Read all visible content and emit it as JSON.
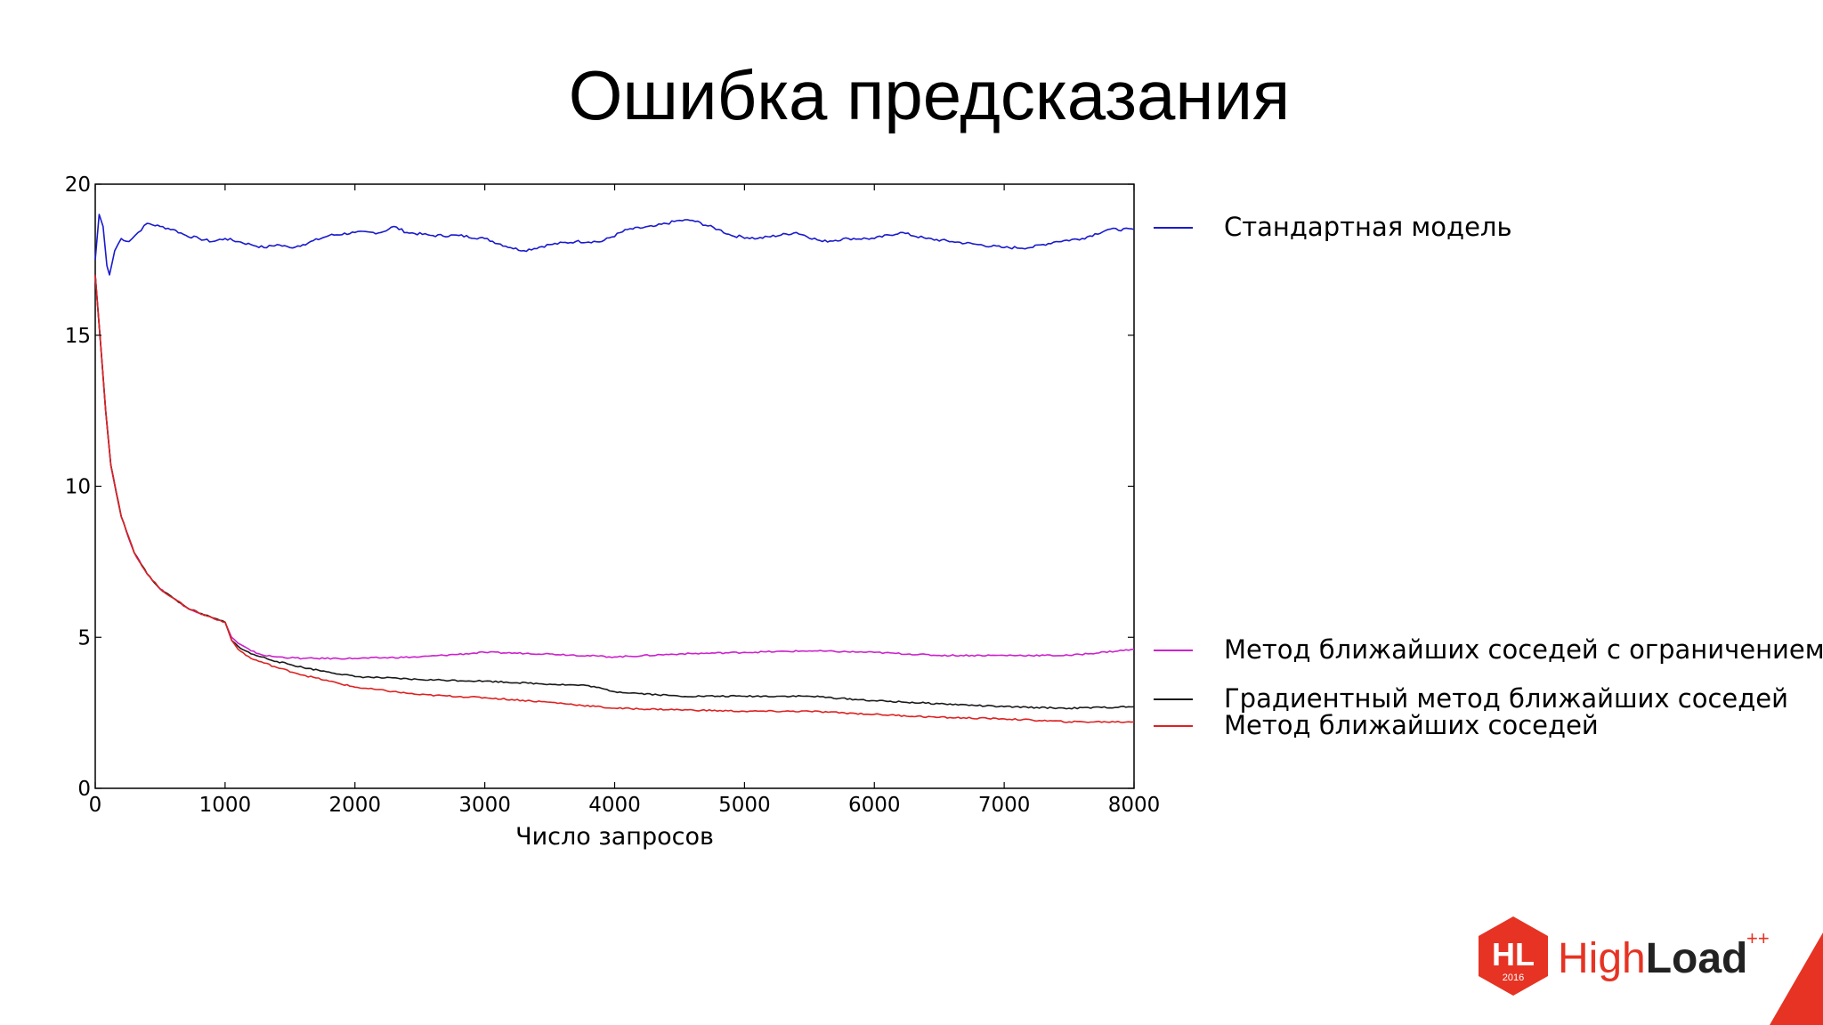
{
  "slide": {
    "title": "Ошибка предсказания"
  },
  "chart_data": {
    "type": "line",
    "title": "",
    "xlabel": "Число запросов",
    "ylabel": "",
    "xlim": [
      0,
      8000
    ],
    "ylim": [
      0,
      20
    ],
    "x_ticks": [
      0,
      1000,
      2000,
      3000,
      4000,
      5000,
      6000,
      7000,
      8000
    ],
    "y_ticks": [
      0,
      5,
      10,
      15,
      20
    ],
    "grid": false,
    "legend_position": "right",
    "series": [
      {
        "name": "Стандартная модель",
        "color": "#1a1acd",
        "points": [
          [
            0,
            17.5
          ],
          [
            30,
            19.0
          ],
          [
            60,
            18.6
          ],
          [
            90,
            17.3
          ],
          [
            110,
            17.0
          ],
          [
            150,
            17.8
          ],
          [
            200,
            18.2
          ],
          [
            260,
            18.1
          ],
          [
            330,
            18.4
          ],
          [
            400,
            18.7
          ],
          [
            500,
            18.6
          ],
          [
            600,
            18.5
          ],
          [
            700,
            18.3
          ],
          [
            800,
            18.2
          ],
          [
            900,
            18.1
          ],
          [
            1000,
            18.2
          ],
          [
            1100,
            18.1
          ],
          [
            1200,
            18.0
          ],
          [
            1300,
            17.9
          ],
          [
            1400,
            18.0
          ],
          [
            1500,
            17.9
          ],
          [
            1600,
            18.0
          ],
          [
            1800,
            18.3
          ],
          [
            2000,
            18.4
          ],
          [
            2200,
            18.4
          ],
          [
            2300,
            18.6
          ],
          [
            2400,
            18.4
          ],
          [
            2600,
            18.3
          ],
          [
            2800,
            18.3
          ],
          [
            3000,
            18.2
          ],
          [
            3200,
            17.9
          ],
          [
            3300,
            17.8
          ],
          [
            3500,
            18.0
          ],
          [
            3700,
            18.1
          ],
          [
            3900,
            18.1
          ],
          [
            4100,
            18.5
          ],
          [
            4300,
            18.6
          ],
          [
            4500,
            18.8
          ],
          [
            4600,
            18.8
          ],
          [
            4800,
            18.5
          ],
          [
            4900,
            18.3
          ],
          [
            5100,
            18.2
          ],
          [
            5400,
            18.4
          ],
          [
            5600,
            18.1
          ],
          [
            5800,
            18.2
          ],
          [
            6000,
            18.2
          ],
          [
            6200,
            18.4
          ],
          [
            6400,
            18.2
          ],
          [
            6600,
            18.1
          ],
          [
            6800,
            18.0
          ],
          [
            7000,
            17.9
          ],
          [
            7200,
            17.9
          ],
          [
            7400,
            18.1
          ],
          [
            7600,
            18.2
          ],
          [
            7800,
            18.5
          ],
          [
            8000,
            18.5
          ]
        ]
      },
      {
        "name": "Метод ближайших соседей с ограничением",
        "color": "#cc22cc",
        "points": [
          [
            0,
            17.0
          ],
          [
            40,
            14.8
          ],
          [
            80,
            12.5
          ],
          [
            120,
            10.7
          ],
          [
            200,
            9.0
          ],
          [
            300,
            7.8
          ],
          [
            400,
            7.1
          ],
          [
            500,
            6.6
          ],
          [
            600,
            6.3
          ],
          [
            700,
            6.0
          ],
          [
            800,
            5.8
          ],
          [
            900,
            5.65
          ],
          [
            1000,
            5.5
          ],
          [
            1050,
            5.0
          ],
          [
            1100,
            4.8
          ],
          [
            1200,
            4.55
          ],
          [
            1300,
            4.4
          ],
          [
            1400,
            4.35
          ],
          [
            1600,
            4.3
          ],
          [
            2000,
            4.3
          ],
          [
            2500,
            4.35
          ],
          [
            3000,
            4.5
          ],
          [
            3500,
            4.45
          ],
          [
            4000,
            4.35
          ],
          [
            4500,
            4.45
          ],
          [
            5000,
            4.5
          ],
          [
            5500,
            4.55
          ],
          [
            6000,
            4.5
          ],
          [
            6500,
            4.4
          ],
          [
            7000,
            4.4
          ],
          [
            7500,
            4.4
          ],
          [
            8000,
            4.6
          ]
        ]
      },
      {
        "name": "Градиентный метод ближайших соседей",
        "color": "#1a1a1a",
        "points": [
          [
            0,
            17.0
          ],
          [
            40,
            14.8
          ],
          [
            80,
            12.5
          ],
          [
            120,
            10.7
          ],
          [
            200,
            9.0
          ],
          [
            300,
            7.8
          ],
          [
            400,
            7.1
          ],
          [
            500,
            6.6
          ],
          [
            600,
            6.3
          ],
          [
            700,
            6.0
          ],
          [
            800,
            5.8
          ],
          [
            900,
            5.65
          ],
          [
            1000,
            5.5
          ],
          [
            1050,
            4.9
          ],
          [
            1100,
            4.7
          ],
          [
            1200,
            4.45
          ],
          [
            1400,
            4.2
          ],
          [
            1600,
            4.0
          ],
          [
            1800,
            3.85
          ],
          [
            2000,
            3.7
          ],
          [
            2500,
            3.6
          ],
          [
            3000,
            3.55
          ],
          [
            3500,
            3.45
          ],
          [
            3800,
            3.4
          ],
          [
            4000,
            3.2
          ],
          [
            4500,
            3.05
          ],
          [
            5000,
            3.05
          ],
          [
            5500,
            3.05
          ],
          [
            6000,
            2.9
          ],
          [
            6500,
            2.8
          ],
          [
            7000,
            2.7
          ],
          [
            7500,
            2.65
          ],
          [
            8000,
            2.7
          ]
        ]
      },
      {
        "name": "Метод ближайших соседей",
        "color": "#dd2222",
        "points": [
          [
            0,
            17.0
          ],
          [
            40,
            14.8
          ],
          [
            80,
            12.5
          ],
          [
            120,
            10.7
          ],
          [
            200,
            9.0
          ],
          [
            300,
            7.8
          ],
          [
            400,
            7.1
          ],
          [
            500,
            6.6
          ],
          [
            600,
            6.3
          ],
          [
            700,
            6.0
          ],
          [
            800,
            5.8
          ],
          [
            900,
            5.65
          ],
          [
            1000,
            5.5
          ],
          [
            1050,
            4.9
          ],
          [
            1100,
            4.6
          ],
          [
            1200,
            4.3
          ],
          [
            1400,
            4.0
          ],
          [
            1600,
            3.75
          ],
          [
            1800,
            3.55
          ],
          [
            2000,
            3.35
          ],
          [
            2500,
            3.1
          ],
          [
            3000,
            3.0
          ],
          [
            3500,
            2.85
          ],
          [
            4000,
            2.65
          ],
          [
            4500,
            2.6
          ],
          [
            5000,
            2.55
          ],
          [
            5500,
            2.55
          ],
          [
            6000,
            2.45
          ],
          [
            6500,
            2.35
          ],
          [
            7000,
            2.3
          ],
          [
            7500,
            2.2
          ],
          [
            8000,
            2.2
          ]
        ]
      }
    ]
  },
  "logo": {
    "badge_text": "HL",
    "badge_year": "2016",
    "name_part1": "High",
    "name_part2": "Load",
    "superscript": "++",
    "color": "#e63323"
  }
}
